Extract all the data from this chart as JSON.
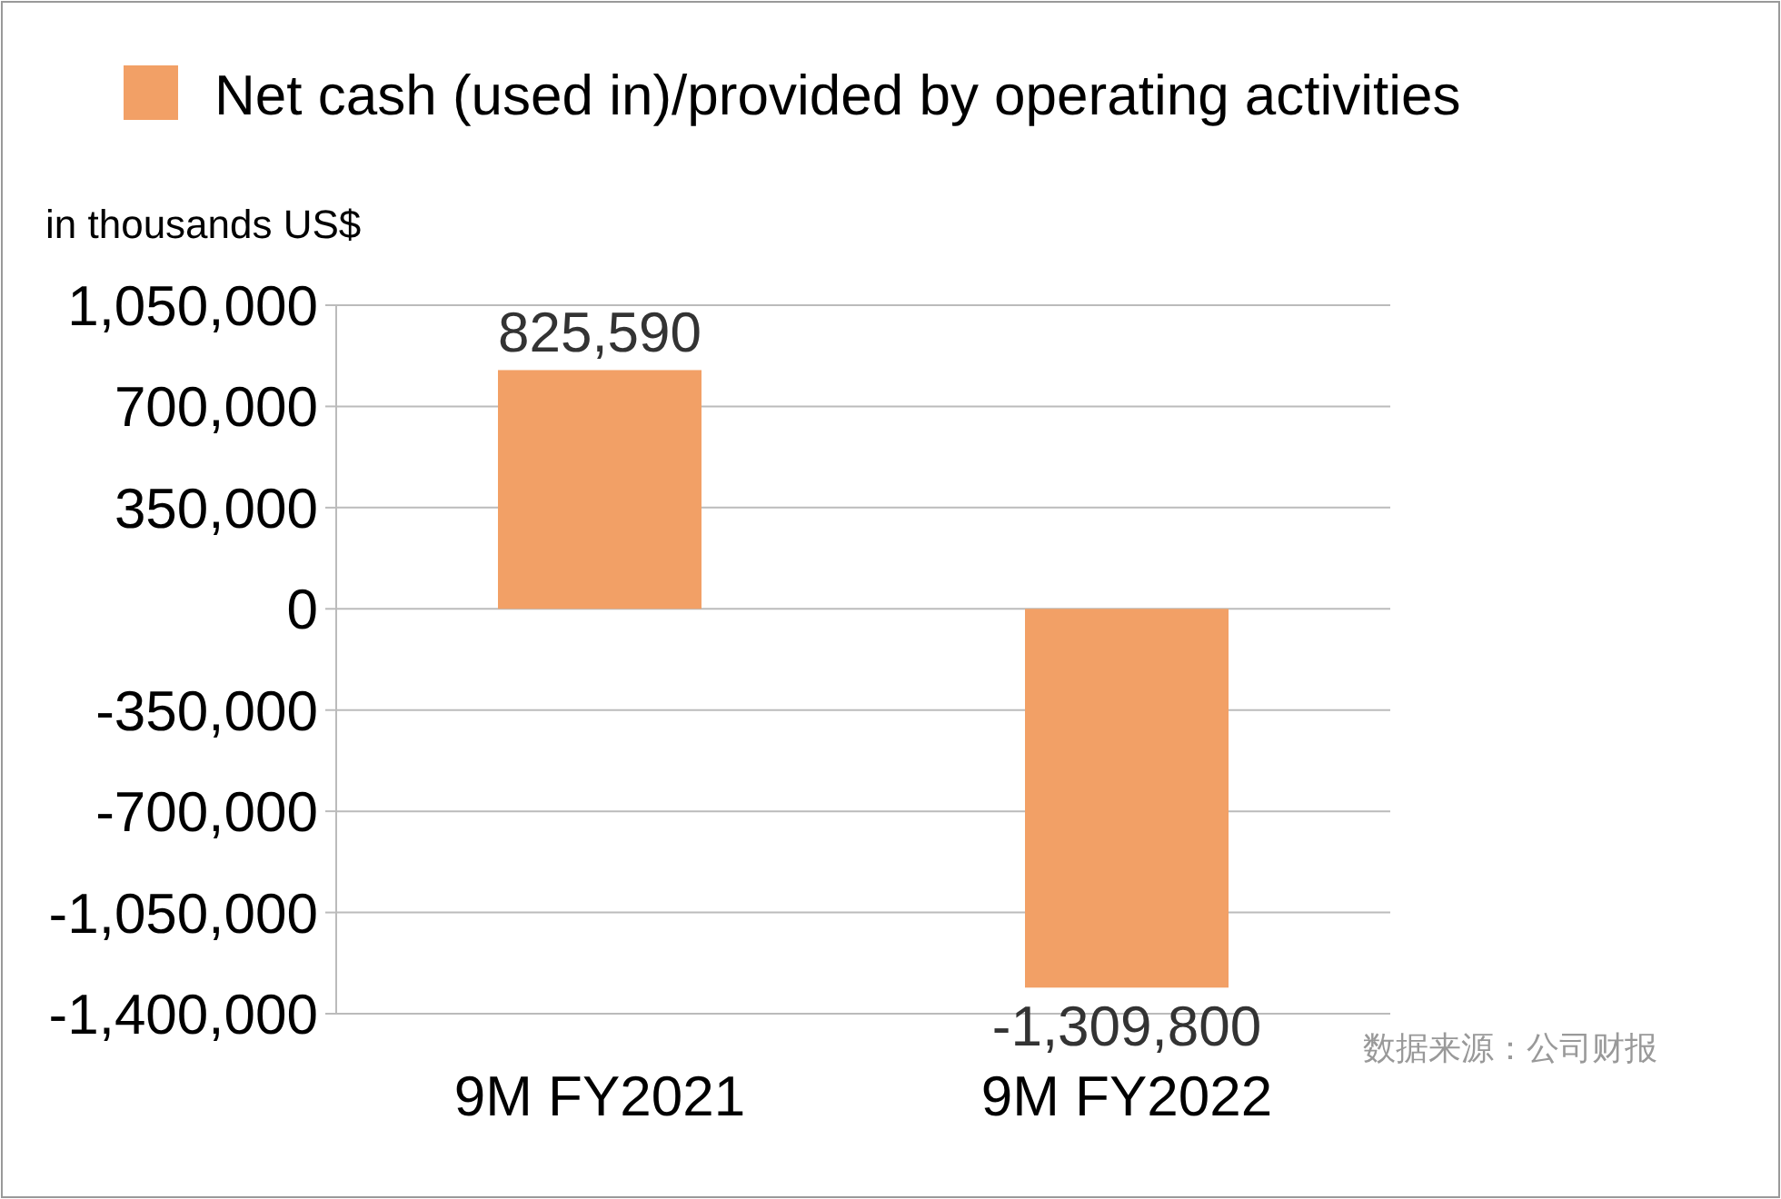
{
  "chart_data": {
    "type": "bar",
    "categories": [
      "9M FY2021",
      "9M FY2022"
    ],
    "series": [
      {
        "name": "Net cash (used in)/provided by operating activities",
        "color": "#f2a066",
        "values": [
          825590,
          -1309800
        ],
        "value_labels": [
          "825,590",
          "-1,309,800"
        ]
      }
    ],
    "ylabel": "in thousands US$",
    "ylim": [
      -1400000,
      1050000
    ],
    "yticks": [
      {
        "value": -1400000,
        "label": "-1,400,000"
      },
      {
        "value": -1050000,
        "label": "-1,050,000"
      },
      {
        "value": -700000,
        "label": "-700,000"
      },
      {
        "value": -350000,
        "label": "-350,000"
      },
      0,
      {
        "value": 350000,
        "label": "350,000"
      },
      {
        "value": 700000,
        "label": "700,000"
      },
      {
        "value": 1050000,
        "label": "1,050,000"
      }
    ],
    "grid": "y",
    "legend": "top",
    "annotations": [
      "数据来源：公司财报"
    ]
  }
}
